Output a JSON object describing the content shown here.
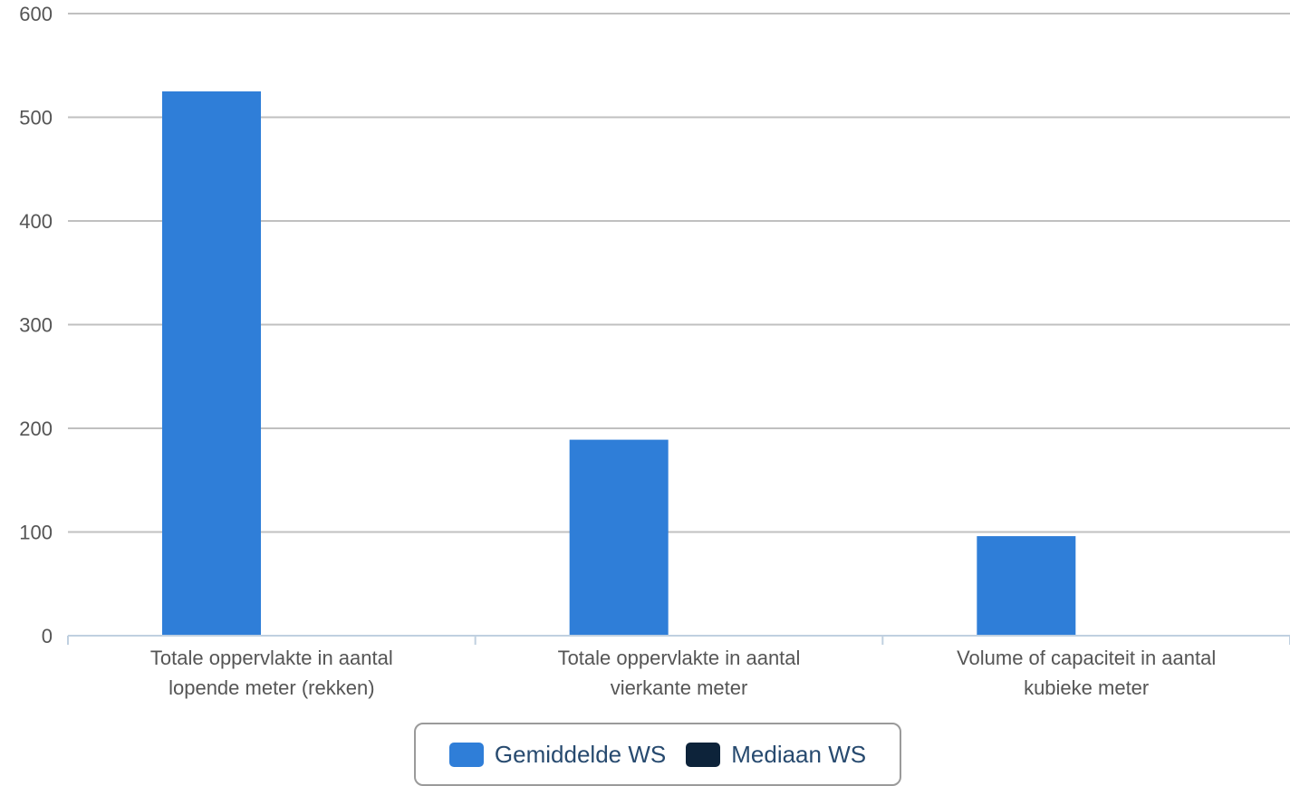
{
  "chart_data": {
    "type": "bar",
    "categories": [
      [
        "Totale oppervlakte in aantal",
        "lopende meter (rekken)"
      ],
      [
        "Totale oppervlakte in aantal",
        "vierkante meter"
      ],
      [
        "Volume of capaciteit in aantal",
        "kubieke meter"
      ]
    ],
    "series": [
      {
        "name": "Gemiddelde WS",
        "values": [
          525,
          189,
          96
        ],
        "color": "#2f7ed8"
      },
      {
        "name": "Mediaan WS",
        "values": [
          0,
          0,
          0
        ],
        "color": "#0d233a"
      }
    ],
    "yticks": [
      "0",
      "100",
      "200",
      "300",
      "400",
      "500",
      "600"
    ],
    "ylim": [
      0,
      600
    ],
    "grid": true,
    "legend_position": "bottom-center",
    "gridline_color": "#c0c0c0",
    "axis_color": "#c0d0e0"
  },
  "legend": {
    "items": [
      {
        "label": "Gemiddelde WS",
        "color": "#2f7ed8"
      },
      {
        "label": "Mediaan WS",
        "color": "#0d233a"
      }
    ]
  }
}
